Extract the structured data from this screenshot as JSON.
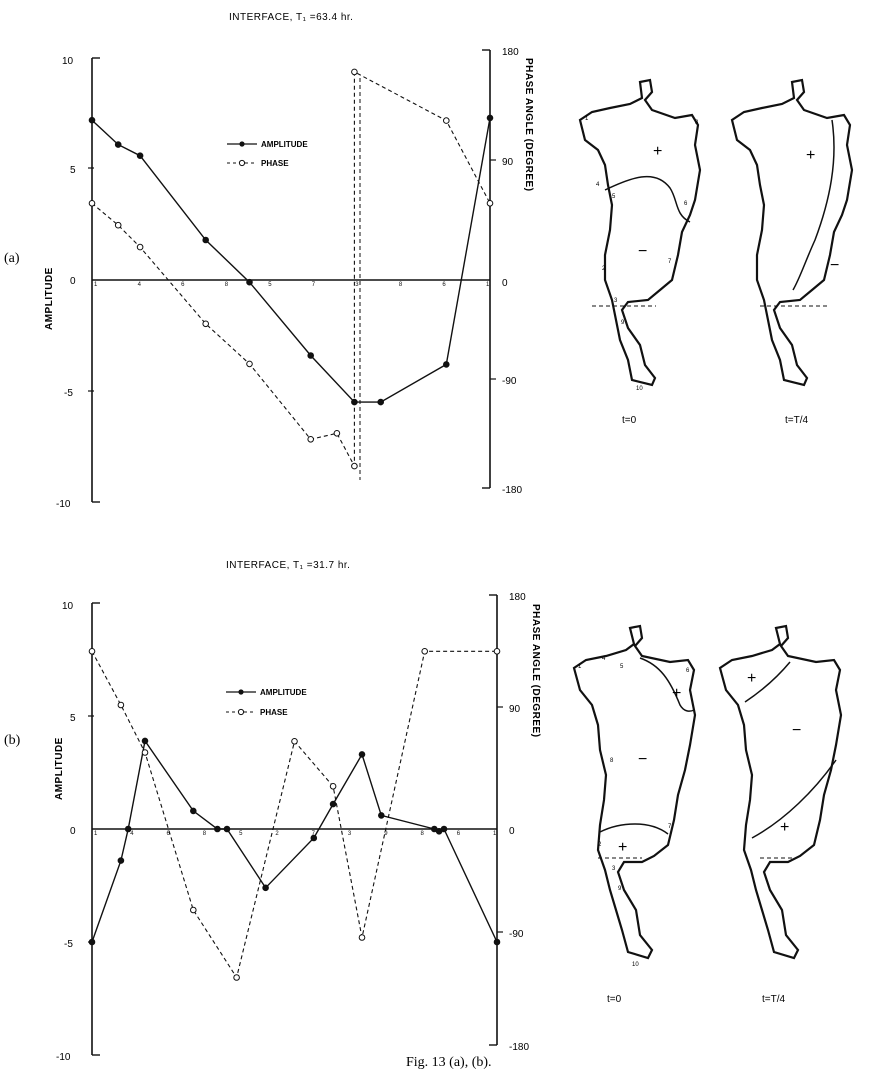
{
  "caption": "Fig. 13 (a), (b).",
  "chart_data": [
    {
      "type": "line",
      "panel_label": "(a)",
      "title": "INTERFACE, T₁ =63.4 hr.",
      "ylabel_left": "AMPLITUDE",
      "ylabel_right": "PHASE ANGLE (DEGREE)",
      "ylim_left": [
        -10,
        10
      ],
      "ylim_right": [
        -180,
        180
      ],
      "yticks_left": [
        "10",
        "5",
        "0",
        "-5",
        "-10"
      ],
      "yticks_right": [
        "180",
        "90",
        "0",
        "-90",
        "-180"
      ],
      "station_labels": [
        "1",
        "4",
        "6",
        "8",
        "5",
        "7",
        "3",
        "8",
        "6",
        "1"
      ],
      "legend": [
        "AMPLITUDE",
        "PHASE"
      ],
      "series": [
        {
          "name": "AMPLITUDE",
          "axis": "left",
          "style": "solid",
          "x": [
            0,
            0.6,
            1.1,
            2.6,
            3.6,
            5.0,
            6.0,
            6.6,
            8.1,
            9.1
          ],
          "y": [
            7.2,
            6.1,
            5.6,
            1.8,
            -0.1,
            -3.4,
            -5.5,
            -5.5,
            -3.8,
            7.3
          ]
        },
        {
          "name": "PHASE",
          "axis": "right",
          "style": "dashed",
          "x": [
            0,
            0.6,
            1.1,
            2.6,
            3.6,
            5.0,
            5.6,
            6.0,
            6.0,
            8.1,
            9.1
          ],
          "y": [
            54,
            36,
            18,
            -45,
            -78,
            -140,
            -135,
            -162,
            162,
            122,
            54
          ]
        }
      ],
      "maps": [
        {
          "label": "t=0",
          "signs": [
            "+",
            "−"
          ],
          "stations": [
            "1",
            "4",
            "5",
            "6",
            "8",
            "2",
            "7",
            "3",
            "9",
            "10"
          ]
        },
        {
          "label": "t=T/4",
          "signs": [
            "+",
            "−"
          ],
          "stations": []
        }
      ]
    },
    {
      "type": "line",
      "panel_label": "(b)",
      "title": "INTERFACE, T₁ =31.7 hr.",
      "ylabel_left": "AMPLITUDE",
      "ylabel_right": "PHASE ANGLE (DEGREE)",
      "ylim_left": [
        -10,
        10
      ],
      "ylim_right": [
        -180,
        180
      ],
      "yticks_left": [
        "10",
        "5",
        "0",
        "-5",
        "-10"
      ],
      "yticks_right": [
        "180",
        "90",
        "0",
        "-90",
        "-180"
      ],
      "station_labels": [
        "1",
        "4",
        "6",
        "8",
        "5",
        "2",
        "7",
        "3",
        "9",
        "8",
        "6",
        "1"
      ],
      "legend": [
        "AMPLITUDE",
        "PHASE"
      ],
      "series": [
        {
          "name": "AMPLITUDE",
          "axis": "left",
          "style": "solid",
          "x": [
            0,
            0.6,
            0.75,
            1.1,
            2.1,
            2.6,
            2.8,
            3.6,
            4.6,
            5.0,
            5.6,
            6.0,
            7.1,
            7.2,
            7.3,
            8.4
          ],
          "y": [
            -5.0,
            -1.4,
            0,
            3.9,
            0.8,
            0,
            0,
            -2.6,
            -0.4,
            1.1,
            3.3,
            0.6,
            0,
            -0.1,
            0,
            -5.0
          ]
        },
        {
          "name": "PHASE",
          "axis": "right",
          "style": "dashed",
          "x": [
            0,
            0.6,
            1.1,
            2.1,
            3.0,
            4.2,
            5.0,
            5.6,
            6.9,
            8.4
          ],
          "y": [
            135,
            92,
            54,
            -72,
            -126,
            63,
            27,
            -94,
            135,
            135
          ]
        }
      ],
      "maps": [
        {
          "label": "t=0",
          "signs": [
            "+",
            "−",
            "+"
          ],
          "stations": [
            "1",
            "4",
            "5",
            "6",
            "8",
            "2",
            "7",
            "3",
            "9",
            "10"
          ]
        },
        {
          "label": "t=T/4",
          "signs": [
            "+",
            "−",
            "+"
          ],
          "stations": []
        }
      ]
    }
  ]
}
